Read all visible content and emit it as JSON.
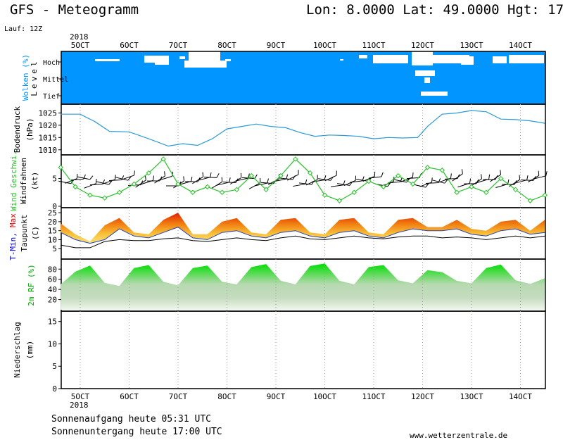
{
  "header": {
    "title": "GFS - Meteogramm",
    "location": "Lon: 8.0000  Lat: 49.0000  Hgt: 17",
    "run": "Lauf: 12Z"
  },
  "year_label": "2018",
  "footer": {
    "sunrise": "Sonnenaufgang heute 05:31 UTC",
    "sunset": "Sonnenuntergang heute 17:00 UTC",
    "website": "www.wetterzentrale.de"
  },
  "colors": {
    "cloud_sky": "#0095ff",
    "pressure_line": "#2a9bd5",
    "wind_line": "#27c227",
    "tmax_label": "#e00000",
    "tmin_label": "#0000dd",
    "rh_green": "#00cc00"
  },
  "chart_data": [
    {
      "type": "area",
      "panel": "clouds",
      "ylabel": "Wolken (%)",
      "ylabel2": "Level",
      "levels": [
        "Hoch",
        "Mittel",
        "Tief"
      ],
      "categories": [
        "5OCT",
        "6OCT",
        "7OCT",
        "8OCT",
        "9OCT",
        "10OCT",
        "11OCT",
        "12OCT",
        "13OCT",
        "14OCT"
      ]
    },
    {
      "type": "line",
      "panel": "pressure",
      "ylabel": "Bodendruck",
      "unit": "(hPa)",
      "yticks": [
        1010,
        1015,
        1020,
        1025
      ],
      "ylim": [
        1008.5,
        1028
      ],
      "x": [
        4.6,
        5.0,
        5.3,
        5.6,
        6.0,
        6.4,
        6.8,
        7.1,
        7.4,
        7.7,
        8.0,
        8.3,
        8.6,
        8.9,
        9.2,
        9.5,
        9.8,
        10.1,
        10.4,
        10.7,
        11.0,
        11.3,
        11.6,
        11.9,
        12.1,
        12.4,
        12.7,
        13.0,
        13.3,
        13.6,
        13.9,
        14.2,
        14.5
      ],
      "values": [
        1024.5,
        1024.5,
        1021.5,
        1017.5,
        1017.3,
        1014.5,
        1011.5,
        1012.5,
        1011.8,
        1014.5,
        1018.5,
        1019.5,
        1020.5,
        1019.5,
        1019.0,
        1017.0,
        1015.5,
        1016.0,
        1015.8,
        1015.5,
        1014.5,
        1015.0,
        1014.8,
        1015.0,
        1019.5,
        1024.5,
        1025.0,
        1026.0,
        1025.5,
        1022.5,
        1022.3,
        1021.8,
        1020.8
      ]
    },
    {
      "type": "line",
      "panel": "wind",
      "ylabel": "Wind Geschwi.",
      "ylabel2": "Windfahnen",
      "unit": "(kt)",
      "yticks": [
        0,
        5
      ],
      "ylim": [
        0,
        9
      ],
      "x": [
        4.6,
        4.9,
        5.2,
        5.5,
        5.8,
        6.1,
        6.4,
        6.7,
        7.0,
        7.3,
        7.6,
        7.9,
        8.2,
        8.5,
        8.8,
        9.1,
        9.4,
        9.7,
        10.0,
        10.3,
        10.6,
        10.9,
        11.2,
        11.5,
        11.8,
        12.1,
        12.4,
        12.7,
        13.0,
        13.3,
        13.6,
        13.9,
        14.2,
        14.5
      ],
      "values": [
        7,
        3.5,
        2,
        1.5,
        2.5,
        4,
        6,
        8.5,
        4,
        2.5,
        3.5,
        2.5,
        3,
        5.5,
        3,
        5.5,
        8.5,
        6,
        2,
        1,
        2.5,
        4.5,
        3.5,
        5.5,
        4,
        7,
        6.5,
        2.5,
        3.5,
        2.5,
        5,
        3,
        1,
        2
      ]
    },
    {
      "type": "area",
      "panel": "temperature",
      "ylabel": "T-Min,",
      "ylabel_max": "Max",
      "ylabel2": "Taupunkt",
      "unit": "(C)",
      "yticks": [
        5,
        10,
        15,
        20,
        25
      ],
      "ylim": [
        0,
        27
      ],
      "x": [
        4.6,
        4.9,
        5.2,
        5.5,
        5.8,
        6.1,
        6.4,
        6.7,
        7.0,
        7.3,
        7.6,
        7.9,
        8.2,
        8.5,
        8.8,
        9.1,
        9.4,
        9.7,
        10.0,
        10.3,
        10.6,
        10.9,
        11.2,
        11.5,
        11.8,
        12.1,
        12.4,
        12.7,
        13.0,
        13.3,
        13.6,
        13.9,
        14.2,
        14.5
      ],
      "series": [
        {
          "name": "T-Max",
          "values": [
            19,
            13,
            9,
            18,
            22,
            14,
            13,
            21,
            25,
            13,
            13,
            20,
            22,
            14,
            13,
            21,
            22,
            14,
            13,
            21,
            22,
            14,
            13,
            21,
            22,
            17,
            17,
            21,
            16,
            15,
            20,
            21,
            15,
            21
          ]
        },
        {
          "name": "T-Min",
          "values": [
            14,
            10,
            8,
            10,
            16,
            12,
            11,
            14,
            17,
            11,
            10,
            14,
            15,
            12,
            11,
            14,
            15,
            12,
            11,
            14,
            15,
            12,
            11,
            14,
            16,
            15,
            15,
            16,
            13,
            12,
            15,
            16,
            13,
            14
          ]
        },
        {
          "name": "Taupunkt",
          "values": [
            7,
            5.5,
            5.5,
            9,
            10,
            9.5,
            9.5,
            10.5,
            11,
            9.5,
            9,
            10,
            11,
            10,
            9.5,
            11,
            12,
            10.5,
            10,
            11,
            12,
            11,
            10.5,
            11.5,
            12,
            12,
            11,
            11.5,
            11,
            10,
            11,
            12,
            11,
            12
          ]
        }
      ]
    },
    {
      "type": "area",
      "panel": "humidity",
      "ylabel": "2m RF (%)",
      "yticks": [
        20,
        40,
        60,
        80
      ],
      "ylim": [
        0,
        97
      ],
      "x": [
        4.6,
        4.9,
        5.2,
        5.5,
        5.8,
        6.1,
        6.4,
        6.7,
        7.0,
        7.3,
        7.6,
        7.9,
        8.2,
        8.5,
        8.8,
        9.1,
        9.4,
        9.7,
        10.0,
        10.3,
        10.6,
        10.9,
        11.2,
        11.5,
        11.8,
        12.1,
        12.4,
        12.7,
        13.0,
        13.3,
        13.6,
        13.9,
        14.2,
        14.5
      ],
      "values": [
        50,
        75,
        87,
        53,
        47,
        82,
        88,
        55,
        48,
        82,
        87,
        55,
        50,
        84,
        90,
        57,
        50,
        86,
        91,
        57,
        50,
        84,
        88,
        58,
        52,
        78,
        74,
        57,
        52,
        82,
        89,
        58,
        51,
        62
      ]
    },
    {
      "type": "bar",
      "panel": "precipitation",
      "ylabel": "Niederschlag",
      "unit": "(mm)",
      "yticks": [
        0,
        5,
        10,
        15
      ],
      "ylim": [
        0,
        17
      ],
      "categories": [
        "5OCT",
        "6OCT",
        "7OCT",
        "8OCT",
        "9OCT",
        "10OCT",
        "11OCT",
        "12OCT",
        "13OCT",
        "14OCT"
      ],
      "values": [
        0,
        0,
        0,
        0,
        0,
        0,
        0,
        0,
        0,
        0
      ]
    }
  ]
}
